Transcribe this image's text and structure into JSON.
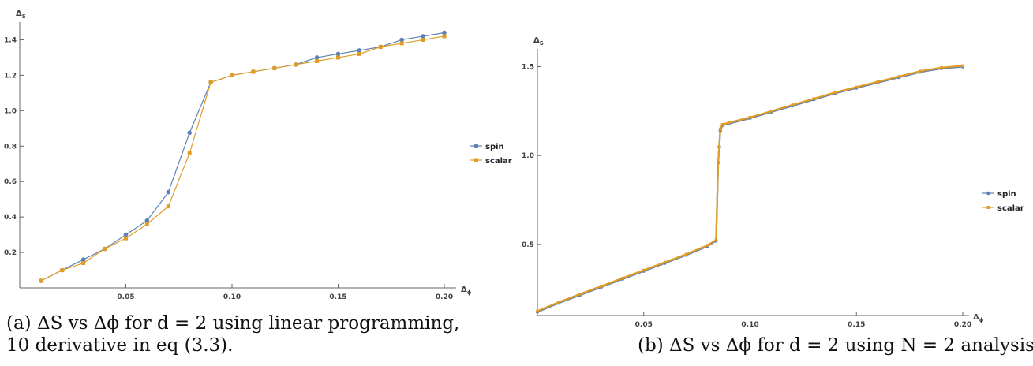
{
  "chart_data": [
    {
      "type": "line",
      "panel": "a",
      "xlabel_symbol": "Δ",
      "xlabel_sub": "ϕ",
      "ylabel_symbol": "Δ",
      "ylabel_sub": "S",
      "xlim": [
        0.0,
        0.2
      ],
      "ylim": [
        0.0,
        1.5
      ],
      "xticks": [
        0.05,
        0.1,
        0.15,
        0.2
      ],
      "xtick_labels": [
        "0.05",
        "0.10",
        "0.15",
        "0.20"
      ],
      "yticks": [
        0.2,
        0.4,
        0.6,
        0.8,
        1.0,
        1.2,
        1.4
      ],
      "ytick_labels": [
        "0.2",
        "0.4",
        "0.6",
        "0.8",
        "1.0",
        "1.2",
        "1.4"
      ],
      "legend_position": "right",
      "series": [
        {
          "name": "spin",
          "color": "#5E81B5",
          "x": [
            0.01,
            0.02,
            0.03,
            0.04,
            0.05,
            0.06,
            0.07,
            0.08,
            0.09,
            0.1,
            0.11,
            0.12,
            0.13,
            0.14,
            0.15,
            0.16,
            0.17,
            0.18,
            0.19,
            0.2
          ],
          "y": [
            0.04,
            0.1,
            0.16,
            0.22,
            0.3,
            0.38,
            0.54,
            0.875,
            1.16,
            1.2,
            1.22,
            1.24,
            1.26,
            1.3,
            1.32,
            1.34,
            1.36,
            1.4,
            1.42,
            1.44
          ]
        },
        {
          "name": "scalar",
          "color": "#E19C24",
          "x": [
            0.01,
            0.02,
            0.03,
            0.04,
            0.05,
            0.06,
            0.07,
            0.08,
            0.09,
            0.1,
            0.11,
            0.12,
            0.13,
            0.14,
            0.15,
            0.16,
            0.17,
            0.18,
            0.19,
            0.2
          ],
          "y": [
            0.04,
            0.1,
            0.14,
            0.22,
            0.28,
            0.36,
            0.46,
            0.76,
            1.16,
            1.2,
            1.22,
            1.24,
            1.26,
            1.28,
            1.3,
            1.32,
            1.36,
            1.38,
            1.4,
            1.42
          ]
        }
      ],
      "caption": {
        "line1": "(a) ΔS vs Δϕ for d = 2 using linear programming,",
        "line2": "10 derivative in eq (3.3)."
      }
    },
    {
      "type": "line",
      "panel": "b",
      "xlabel_symbol": "Δ",
      "xlabel_sub": "ϕ",
      "ylabel_symbol": "Δ",
      "ylabel_sub": "S",
      "xlim": [
        0.0,
        0.2
      ],
      "ylim": [
        0.1,
        1.6
      ],
      "xticks": [
        0.05,
        0.1,
        0.15,
        0.2
      ],
      "xtick_labels": [
        "0.05",
        "0.10",
        "0.15",
        "0.20"
      ],
      "yticks": [
        0.5,
        1.0,
        1.5
      ],
      "ytick_labels": [
        "0.5",
        "1.0",
        "1.5"
      ],
      "legend_position": "right",
      "series": [
        {
          "name": "spin",
          "color": "#5E81B5",
          "x": [
            0.0,
            0.01,
            0.02,
            0.03,
            0.04,
            0.05,
            0.06,
            0.07,
            0.08,
            0.084,
            0.085,
            0.0855,
            0.086,
            0.087,
            0.09,
            0.1,
            0.11,
            0.12,
            0.13,
            0.14,
            0.15,
            0.16,
            0.17,
            0.18,
            0.19,
            0.2
          ],
          "y": [
            0.12,
            0.17,
            0.215,
            0.26,
            0.305,
            0.35,
            0.395,
            0.44,
            0.49,
            0.52,
            0.96,
            1.05,
            1.14,
            1.17,
            1.18,
            1.21,
            1.245,
            1.28,
            1.315,
            1.35,
            1.38,
            1.41,
            1.44,
            1.47,
            1.49,
            1.5
          ]
        },
        {
          "name": "scalar",
          "color": "#E19C24",
          "x": [
            0.0,
            0.01,
            0.02,
            0.03,
            0.04,
            0.05,
            0.06,
            0.07,
            0.08,
            0.084,
            0.085,
            0.0855,
            0.086,
            0.087,
            0.09,
            0.1,
            0.11,
            0.12,
            0.13,
            0.14,
            0.15,
            0.16,
            0.17,
            0.18,
            0.19,
            0.2
          ],
          "y": [
            0.125,
            0.175,
            0.22,
            0.265,
            0.31,
            0.355,
            0.4,
            0.445,
            0.495,
            0.525,
            0.96,
            1.05,
            1.15,
            1.175,
            1.185,
            1.215,
            1.25,
            1.285,
            1.32,
            1.355,
            1.385,
            1.415,
            1.445,
            1.475,
            1.495,
            1.505
          ]
        }
      ],
      "caption": {
        "line1": "(b) ΔS vs Δϕ for d = 2 using N = 2 analysis."
      }
    }
  ]
}
